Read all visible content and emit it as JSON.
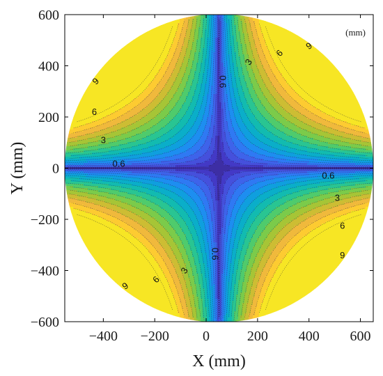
{
  "chart_data": {
    "type": "contour",
    "title": "",
    "xlabel": "X (mm)",
    "ylabel": "Y (mm)",
    "unit_annotation": "(mm)",
    "xlim": [
      -550,
      650
    ],
    "ylim": [
      -600,
      600
    ],
    "xticks": [
      -400,
      -200,
      0,
      200,
      400,
      600
    ],
    "yticks": [
      -600,
      -400,
      -200,
      0,
      200,
      400,
      600
    ],
    "xtick_labels": [
      "−400",
      "−200",
      "0",
      "200",
      "400",
      "600"
    ],
    "ytick_labels": [
      "−600",
      "−400",
      "−200",
      "0",
      "200",
      "400",
      "600"
    ],
    "domain": {
      "shape": "circle",
      "center": [
        50,
        0
      ],
      "radius": 600
    },
    "field": {
      "description": "Deviation field rising from the central cross toward the four diagonal quadrants",
      "cross_center": [
        50,
        0
      ],
      "min": 0,
      "max": 11
    },
    "contour_levels": [
      0.6,
      1.2,
      1.8,
      2.4,
      3,
      3.6,
      4.2,
      4.8,
      5.4,
      6,
      6.6,
      7.2,
      7.8,
      8.4,
      9,
      9.6,
      10.2
    ],
    "colors": [
      "#3d2ea4",
      "#4339c6",
      "#4550dc",
      "#3e63ea",
      "#2f79f3",
      "#1d8ef0",
      "#0f9fde",
      "#0aaec9",
      "#12bbb0",
      "#29c592",
      "#4fcb6c",
      "#7bcb4a",
      "#a6c536",
      "#cdbd33",
      "#f0b93c",
      "#fdcb31",
      "#f7e624"
    ],
    "labels": [
      {
        "text": "0.6",
        "x": 65,
        "y": 338,
        "angle": 90
      },
      {
        "text": "3",
        "x": 165,
        "y": 415,
        "angle": -55
      },
      {
        "text": "6",
        "x": 285,
        "y": 450,
        "angle": -45
      },
      {
        "text": "9",
        "x": 400,
        "y": 478,
        "angle": -35
      },
      {
        "text": "9",
        "x": -430,
        "y": 340,
        "angle": -45
      },
      {
        "text": "6",
        "x": -435,
        "y": 220,
        "angle": 0
      },
      {
        "text": "3",
        "x": -400,
        "y": 110,
        "angle": 0
      },
      {
        "text": "0.6",
        "x": -340,
        "y": 18,
        "angle": 0
      },
      {
        "text": "0.6",
        "x": 475,
        "y": -28,
        "angle": 0
      },
      {
        "text": "3",
        "x": 510,
        "y": -115,
        "angle": 0
      },
      {
        "text": "6",
        "x": 530,
        "y": -225,
        "angle": 0
      },
      {
        "text": "9",
        "x": 530,
        "y": -340,
        "angle": 0
      },
      {
        "text": "0.6",
        "x": 35,
        "y": -335,
        "angle": 90
      },
      {
        "text": "3",
        "x": -85,
        "y": -400,
        "angle": -55
      },
      {
        "text": "6",
        "x": -195,
        "y": -435,
        "angle": -45
      },
      {
        "text": "9",
        "x": -315,
        "y": -460,
        "angle": -35
      }
    ]
  }
}
